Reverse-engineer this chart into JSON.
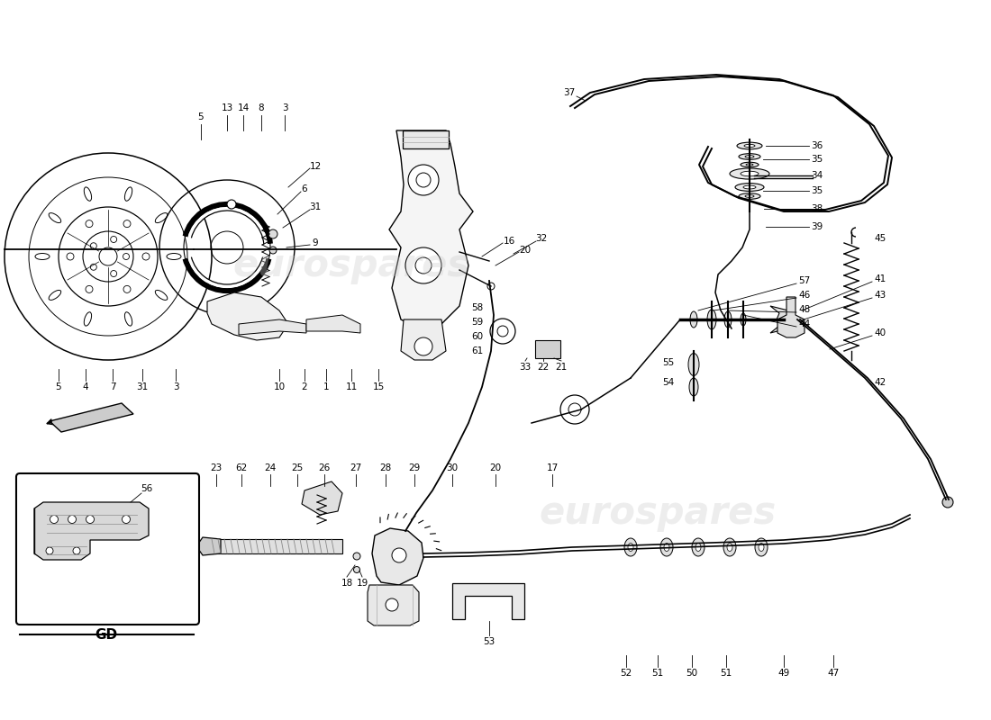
{
  "background_color": "#ffffff",
  "line_color": "#000000",
  "watermark_color": "#cccccc",
  "watermark_alpha": 0.35,
  "gd_label": "GD",
  "fig_width": 11.0,
  "fig_height": 8.0,
  "dpi": 100
}
